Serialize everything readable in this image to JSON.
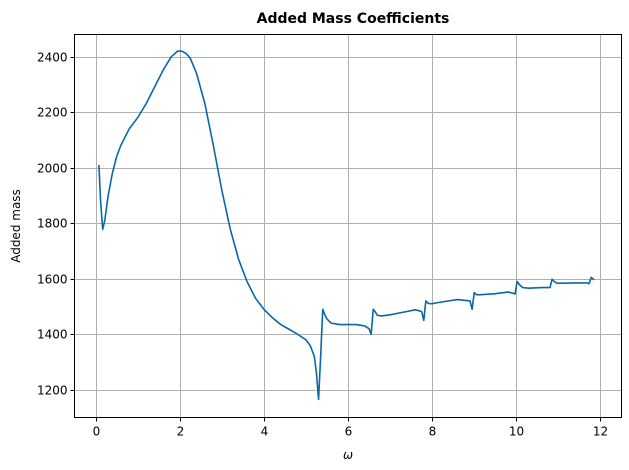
{
  "chart_data": {
    "type": "line",
    "title": "Added Mass Coefficients",
    "xlabel": "ω",
    "ylabel": "Added mass",
    "xlim": [
      -0.5,
      12.5
    ],
    "ylim": [
      1100,
      2480
    ],
    "xticks": [
      0,
      2,
      4,
      6,
      8,
      10,
      12
    ],
    "yticks": [
      1200,
      1400,
      1600,
      1800,
      2000,
      2200,
      2400
    ],
    "grid": true,
    "colors": {
      "line": "#0868a8"
    },
    "series": [
      {
        "x": [
          0.08,
          0.12,
          0.17,
          0.22,
          0.3,
          0.4,
          0.5,
          0.6,
          0.7,
          0.8,
          1.0,
          1.2,
          1.4,
          1.6,
          1.8,
          1.95,
          2.05,
          2.15,
          2.25,
          2.4,
          2.6,
          2.8,
          3.0,
          3.2,
          3.4,
          3.6,
          3.8,
          4.0,
          4.2,
          4.4,
          4.6,
          4.8,
          5.0,
          5.1,
          5.2,
          5.25,
          5.3,
          5.35,
          5.4,
          5.45,
          5.5,
          5.6,
          5.8,
          6.0,
          6.2,
          6.4,
          6.5,
          6.55,
          6.6,
          6.65,
          6.7,
          6.8,
          7.0,
          7.2,
          7.4,
          7.6,
          7.75,
          7.8,
          7.85,
          7.9,
          7.95,
          8.0,
          8.1,
          8.3,
          8.6,
          8.9,
          8.95,
          9.0,
          9.05,
          9.1,
          9.2,
          9.5,
          9.8,
          9.92,
          9.97,
          10.02,
          10.08,
          10.15,
          10.3,
          10.6,
          10.8,
          10.85,
          10.9,
          10.97,
          11.1,
          11.4,
          11.68,
          11.73,
          11.78,
          11.85
        ],
        "y": [
          2010,
          1880,
          1778,
          1810,
          1900,
          1980,
          2040,
          2080,
          2110,
          2140,
          2180,
          2230,
          2290,
          2350,
          2400,
          2420,
          2420,
          2412,
          2395,
          2340,
          2230,
          2080,
          1920,
          1780,
          1670,
          1590,
          1530,
          1490,
          1460,
          1435,
          1418,
          1400,
          1380,
          1360,
          1320,
          1260,
          1165,
          1320,
          1490,
          1470,
          1455,
          1440,
          1435,
          1435,
          1435,
          1430,
          1420,
          1400,
          1490,
          1480,
          1468,
          1466,
          1470,
          1476,
          1482,
          1488,
          1482,
          1450,
          1520,
          1512,
          1510,
          1510,
          1513,
          1518,
          1525,
          1520,
          1490,
          1550,
          1543,
          1542,
          1543,
          1546,
          1552,
          1548,
          1545,
          1590,
          1578,
          1568,
          1566,
          1568,
          1568,
          1598,
          1590,
          1584,
          1584,
          1585,
          1585,
          1582,
          1605,
          1596
        ]
      }
    ]
  }
}
